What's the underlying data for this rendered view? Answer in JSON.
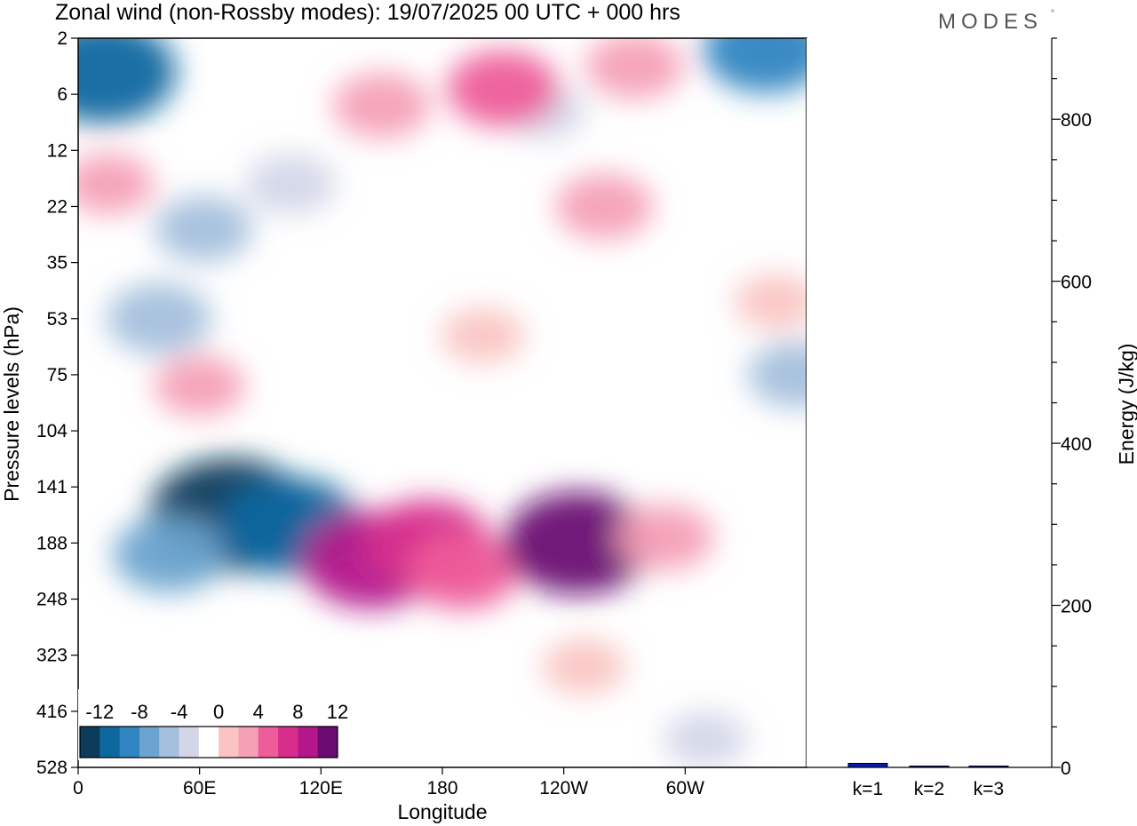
{
  "header": {
    "title": "Zonal wind (non-Rossby modes):  19/07/2025  00 UTC  + 000 hrs",
    "logo": "MODES",
    "logo_mark": "°"
  },
  "chart_data": [
    {
      "type": "heatmap",
      "title": "Zonal wind (non-Rossby modes):  19/07/2025  00 UTC  + 000 hrs",
      "xlabel": "Longitude",
      "ylabel": "Pressure levels (hPa)",
      "x_ticks": [
        "0",
        "60E",
        "120E",
        "180",
        "120W",
        "60W"
      ],
      "x_tick_degrees": [
        0,
        60,
        120,
        180,
        240,
        300
      ],
      "xlim": [
        0,
        360
      ],
      "y_ticks": [
        "2",
        "6",
        "12",
        "22",
        "35",
        "53",
        "75",
        "104",
        "141",
        "188",
        "248",
        "323",
        "416",
        "528"
      ],
      "colorbar": {
        "ticks": [
          "-12",
          "-8",
          "-4",
          "0",
          "4",
          "8",
          "12"
        ],
        "levels": [
          -14,
          -12,
          -10,
          -8,
          -6,
          -4,
          -2,
          2,
          4,
          6,
          8,
          10,
          12,
          14
        ],
        "colors": [
          "#0c3b5c",
          "#0f67a0",
          "#2f84c1",
          "#6ca4cf",
          "#a4bfdc",
          "#d3d6e8",
          "#ffffff",
          "#f9c4c2",
          "#f6a0b6",
          "#ee5c99",
          "#d72e8d",
          "#b5178b",
          "#6a0c72"
        ]
      },
      "regions": [
        {
          "lon": 75,
          "level": 8.5,
          "value": -14
        },
        {
          "lon": 105,
          "level": 8.7,
          "value": -11
        },
        {
          "lon": 45,
          "level": 9.2,
          "value": -7
        },
        {
          "lon": 12,
          "level": 0.6,
          "value": -12
        },
        {
          "lon": 40,
          "level": 5.0,
          "value": -6
        },
        {
          "lon": 62,
          "level": 3.4,
          "value": -5
        },
        {
          "lon": 105,
          "level": 2.6,
          "value": -4
        },
        {
          "lon": 230,
          "level": 1.3,
          "value": -3
        },
        {
          "lon": 340,
          "level": 0.2,
          "value": -9
        },
        {
          "lon": 355,
          "level": 6.0,
          "value": -5
        },
        {
          "lon": 310,
          "level": 12.5,
          "value": -3
        },
        {
          "lon": 145,
          "level": 9.3,
          "value": 11
        },
        {
          "lon": 173,
          "level": 9.0,
          "value": 9
        },
        {
          "lon": 190,
          "level": 9.5,
          "value": 7
        },
        {
          "lon": 247,
          "level": 9.0,
          "value": 12
        },
        {
          "lon": 290,
          "level": 8.9,
          "value": 5
        },
        {
          "lon": 250,
          "level": 11.2,
          "value": 3
        },
        {
          "lon": 60,
          "level": 6.2,
          "value": 4
        },
        {
          "lon": 150,
          "level": 1.2,
          "value": 5
        },
        {
          "lon": 210,
          "level": 0.9,
          "value": 7
        },
        {
          "lon": 275,
          "level": 0.5,
          "value": 5
        },
        {
          "lon": 260,
          "level": 3.0,
          "value": 5
        },
        {
          "lon": 15,
          "level": 2.6,
          "value": 4
        },
        {
          "lon": 200,
          "level": 5.3,
          "value": 3
        },
        {
          "lon": 345,
          "level": 4.7,
          "value": 3
        }
      ]
    },
    {
      "type": "bar",
      "categories": [
        "k=1",
        "k=2",
        "k=3"
      ],
      "values": [
        5,
        1.5,
        0.5
      ],
      "ylabel": "Energy (J/kg)",
      "ylim": [
        0,
        900
      ],
      "y_ticks": [
        "0",
        "200",
        "400",
        "600",
        "800"
      ],
      "y_tick_values": [
        0,
        200,
        400,
        600,
        800
      ],
      "bar_colors": [
        "#0a1aa8",
        "#0a1aa8",
        "#0a1aa8"
      ]
    }
  ]
}
